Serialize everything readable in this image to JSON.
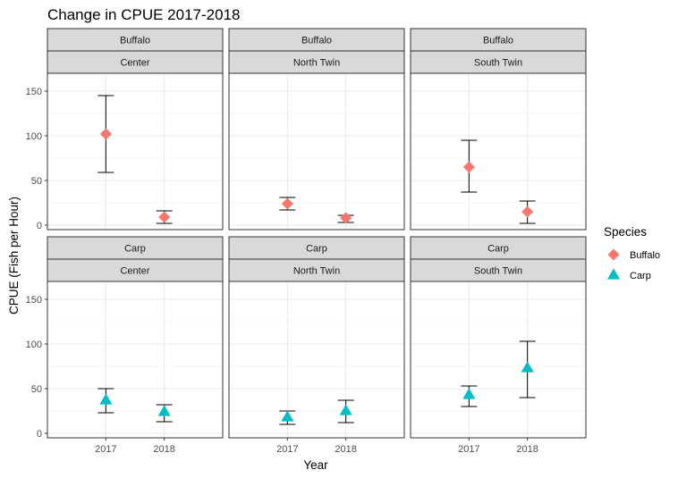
{
  "chart_data": {
    "type": "scatter",
    "title": "Change in CPUE 2017-2018",
    "xlabel": "Year",
    "ylabel": "CPUE (Fish per Hour)",
    "x_categories": [
      "2017",
      "2018"
    ],
    "yticks": [
      0,
      50,
      100,
      150
    ],
    "ylim": [
      -5,
      170
    ],
    "grid": true,
    "legend": {
      "title": "Species",
      "position": "right",
      "entries": [
        {
          "label": "Buffalo",
          "color": "#F8766D",
          "shape": "diamond"
        },
        {
          "label": "Carp",
          "color": "#00BFC4",
          "shape": "triangle"
        }
      ]
    },
    "facets": [
      {
        "species": "Buffalo",
        "location": "Center",
        "points": [
          {
            "x": "2017",
            "y": 102,
            "lo": 59,
            "hi": 145
          },
          {
            "x": "2018",
            "y": 9,
            "lo": 2,
            "hi": 16
          }
        ]
      },
      {
        "species": "Buffalo",
        "location": "North Twin",
        "points": [
          {
            "x": "2017",
            "y": 24,
            "lo": 17,
            "hi": 31
          },
          {
            "x": "2018",
            "y": 8,
            "lo": 3,
            "hi": 11
          }
        ]
      },
      {
        "species": "Buffalo",
        "location": "South Twin",
        "points": [
          {
            "x": "2017",
            "y": 65,
            "lo": 37,
            "hi": 95
          },
          {
            "x": "2018",
            "y": 15,
            "lo": 2,
            "hi": 27
          }
        ]
      },
      {
        "species": "Carp",
        "location": "Center",
        "points": [
          {
            "x": "2017",
            "y": 37,
            "lo": 23,
            "hi": 50
          },
          {
            "x": "2018",
            "y": 24,
            "lo": 13,
            "hi": 32
          }
        ]
      },
      {
        "species": "Carp",
        "location": "North Twin",
        "points": [
          {
            "x": "2017",
            "y": 18,
            "lo": 10,
            "hi": 25
          },
          {
            "x": "2018",
            "y": 25,
            "lo": 12,
            "hi": 37
          }
        ]
      },
      {
        "species": "Carp",
        "location": "South Twin",
        "points": [
          {
            "x": "2017",
            "y": 43,
            "lo": 30,
            "hi": 53
          },
          {
            "x": "2018",
            "y": 73,
            "lo": 40,
            "hi": 103
          }
        ]
      }
    ],
    "colors": {
      "Buffalo": "#F8766D",
      "Carp": "#00BFC4",
      "strip_fill": "#D9D9D9",
      "grid": "#EBEBEB",
      "tick_text": "#4D4D4D"
    }
  }
}
